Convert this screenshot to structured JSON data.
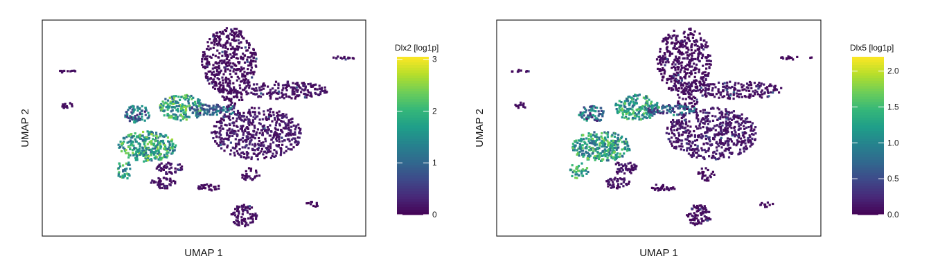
{
  "chart_data": [
    {
      "type": "scatter",
      "plot": "umap_hexbin",
      "xlabel": "UMAP 1",
      "ylabel": "UMAP 2",
      "colorbar": {
        "title": "Dlx2 [log1p]",
        "range": [
          0,
          3.05
        ],
        "ticks": [
          0,
          1,
          2,
          3
        ],
        "tick_labels": [
          "0",
          "1",
          "2",
          "3"
        ],
        "colormap": "viridis"
      },
      "highlight_clusters": [
        "left-lower",
        "left-upper",
        "left-tail"
      ],
      "highlight_level": 0.62
    },
    {
      "type": "scatter",
      "plot": "umap_hexbin",
      "xlabel": "UMAP 1",
      "ylabel": "UMAP 2",
      "colorbar": {
        "title": "Dlx5 [log1p]",
        "range": [
          0,
          2.2
        ],
        "ticks": [
          0.0,
          0.5,
          1.0,
          1.5,
          2.0
        ],
        "tick_labels": [
          "0.0",
          "0.5",
          "1.0",
          "1.5",
          "2.0"
        ],
        "colormap": "viridis"
      },
      "highlight_clusters": [
        "left-lower",
        "left-upper",
        "left-tail"
      ],
      "highlight_level": 0.58
    }
  ],
  "colors": {
    "viridis": [
      "#440154",
      "#482878",
      "#3e4989",
      "#31688e",
      "#26828e",
      "#1f9e89",
      "#35b779",
      "#6ece58",
      "#b5de2b",
      "#fde725"
    ],
    "frame": "#222222",
    "background": "#ffffff"
  }
}
